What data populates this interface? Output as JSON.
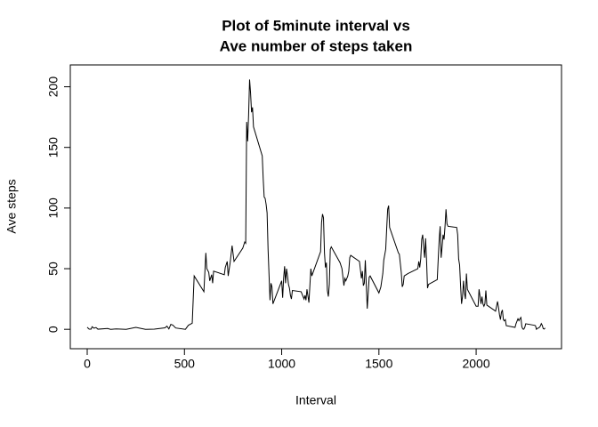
{
  "chart_data": {
    "type": "line",
    "title": [
      "Plot of 5minute interval vs",
      "Ave number of steps taken"
    ],
    "xlabel": "Interval",
    "ylabel": "Ave steps",
    "x": [
      0,
      10,
      20,
      25,
      35,
      45,
      55,
      105,
      120,
      150,
      200,
      250,
      300,
      345,
      400,
      410,
      420,
      430,
      440,
      455,
      505,
      520,
      540,
      550,
      600,
      610,
      615,
      625,
      630,
      640,
      645,
      650,
      705,
      710,
      720,
      725,
      735,
      745,
      755,
      800,
      810,
      815,
      820,
      825,
      830,
      835,
      840,
      845,
      850,
      855,
      900,
      905,
      910,
      915,
      920,
      925,
      930,
      935,
      940,
      945,
      950,
      955,
      1000,
      1005,
      1010,
      1015,
      1020,
      1025,
      1030,
      1035,
      1040,
      1045,
      1050,
      1055,
      1100,
      1105,
      1115,
      1120,
      1125,
      1130,
      1140,
      1145,
      1150,
      1155,
      1200,
      1205,
      1210,
      1215,
      1220,
      1225,
      1230,
      1235,
      1240,
      1245,
      1250,
      1255,
      1300,
      1310,
      1320,
      1325,
      1330,
      1340,
      1345,
      1350,
      1355,
      1400,
      1410,
      1415,
      1420,
      1425,
      1430,
      1440,
      1450,
      1455,
      1500,
      1510,
      1520,
      1525,
      1535,
      1540,
      1545,
      1550,
      1555,
      1600,
      1605,
      1615,
      1620,
      1625,
      1630,
      1640,
      1650,
      1700,
      1705,
      1710,
      1715,
      1720,
      1725,
      1730,
      1735,
      1740,
      1745,
      1750,
      1755,
      1800,
      1805,
      1810,
      1815,
      1820,
      1825,
      1830,
      1835,
      1840,
      1845,
      1850,
      1855,
      1900,
      1905,
      1910,
      1915,
      1920,
      1925,
      1930,
      1935,
      1940,
      1945,
      1950,
      1955,
      2000,
      2005,
      2010,
      2015,
      2020,
      2025,
      2030,
      2035,
      2040,
      2045,
      2050,
      2055,
      2100,
      2110,
      2115,
      2120,
      2125,
      2130,
      2135,
      2140,
      2145,
      2150,
      2155,
      2200,
      2205,
      2215,
      2220,
      2225,
      2230,
      2235,
      2240,
      2245,
      2250,
      2255,
      2300,
      2305,
      2310,
      2315,
      2320,
      2325,
      2330,
      2335,
      2340,
      2345,
      2350,
      2355
    ],
    "series": [
      {
        "color": "#000000",
        "values": [
          1.7,
          0.1,
          0.1,
          2.1,
          0.9,
          1.5,
          0.1,
          0.7,
          0,
          0.3,
          0,
          1.6,
          0,
          0.1,
          1.2,
          2.6,
          0.3,
          4.1,
          3.5,
          1.1,
          0,
          3.3,
          5,
          44,
          31,
          63,
          50,
          47,
          40,
          45,
          38,
          48,
          45,
          51,
          56,
          44,
          55,
          69,
          56,
          67,
          72,
          71,
          171,
          155,
          177,
          206,
          195,
          179,
          183,
          167,
          143,
          124,
          109,
          108,
          103,
          96,
          66,
          45,
          24,
          38,
          35,
          21,
          40,
          26,
          42,
          52,
          38,
          50,
          44,
          37,
          34,
          28,
          25,
          32,
          31,
          29,
          25,
          28,
          24,
          33,
          22,
          36,
          50,
          44,
          64,
          88,
          95,
          92,
          63,
          51,
          55,
          32,
          27,
          37,
          66,
          68,
          55,
          50,
          36,
          42,
          40,
          44,
          48,
          59,
          61,
          56,
          42,
          48,
          36,
          38,
          57,
          17,
          43,
          44,
          30,
          35,
          46,
          57,
          66,
          83,
          99,
          102,
          84,
          63,
          62,
          47,
          35,
          37,
          44,
          45,
          46,
          50,
          56,
          51,
          58,
          74,
          78,
          68,
          59,
          75,
          57,
          34,
          37,
          41,
          58,
          74,
          85,
          59,
          68,
          78,
          74,
          85,
          99,
          87,
          85,
          84,
          78,
          58,
          53,
          36,
          21,
          27,
          40,
          30,
          25,
          46,
          33,
          19,
          19,
          19,
          33,
          27,
          21,
          27,
          21,
          19,
          21,
          32,
          20,
          15,
          23,
          18,
          12,
          8,
          14,
          16,
          8,
          7,
          8,
          3,
          1.6,
          4.6,
          8.7,
          7.1,
          8.7,
          9.8,
          2.2,
          0.3,
          0.1,
          1.6,
          4.6,
          3.3,
          3,
          0,
          0.8,
          1,
          1.6,
          2.6,
          4.7,
          3.3,
          0.6,
          0.2,
          1.1
        ]
      }
    ],
    "xlim": [
      -87,
      2439
    ],
    "ylim": [
      -16,
      218
    ],
    "xticks": [
      0,
      500,
      1000,
      1500,
      2000
    ],
    "yticks": [
      0,
      50,
      100,
      150,
      200
    ]
  }
}
